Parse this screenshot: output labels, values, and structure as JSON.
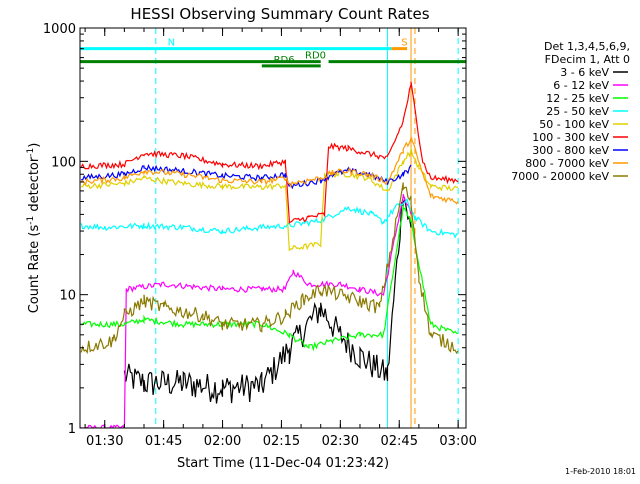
{
  "chart_data": {
    "type": "line",
    "title": "HESSI Observing Summary Count Rates",
    "xlabel": "Start Time (11-Dec-04 01:23:42)",
    "ylabel_main": "Count Rate (s",
    "ylabel_sup1": "-1",
    "ylabel_mid": " detector",
    "ylabel_sup2": "-1",
    "ylabel_end": ")",
    "footer": "1-Feb-2010 18:01",
    "x_scale": "time",
    "y_scale": "log",
    "xlim": [
      "01:23:42",
      "03:02:00"
    ],
    "ylim": [
      1,
      1000
    ],
    "x_ticks": [
      {
        "t": "01:30",
        "label": "01:30"
      },
      {
        "t": "01:45",
        "label": "01:45"
      },
      {
        "t": "02:00",
        "label": "02:00"
      },
      {
        "t": "02:15",
        "label": "02:15"
      },
      {
        "t": "02:30",
        "label": "02:30"
      },
      {
        "t": "02:45",
        "label": "02:45"
      },
      {
        "t": "03:00",
        "label": "03:00"
      }
    ],
    "y_ticks": [
      {
        "v": 1,
        "label": "1"
      },
      {
        "v": 10,
        "label": "10"
      },
      {
        "v": 100,
        "label": "100"
      },
      {
        "v": 1000,
        "label": "1000"
      }
    ],
    "legend_header": [
      "Det 1,3,4,5,6,9,",
      "FDecim 1, Att 0"
    ],
    "legend_position": "right",
    "series": [
      {
        "name": "3 - 6 keV",
        "color": "#000000",
        "points": [
          [
            "01:35",
            2.5
          ],
          [
            "01:40",
            2.2
          ],
          [
            "01:50",
            2.2
          ],
          [
            "02:00",
            2.0
          ],
          [
            "02:10",
            2.1
          ],
          [
            "02:17",
            4
          ],
          [
            "02:25",
            8
          ],
          [
            "02:30",
            5
          ],
          [
            "02:35",
            3.5
          ],
          [
            "02:42",
            2.5
          ],
          [
            "02:46",
            60
          ],
          [
            "02:48",
            30
          ]
        ]
      },
      {
        "name": "6 - 12 keV",
        "color": "#ff00ff",
        "points": [
          [
            "01:23:42",
            1.0
          ],
          [
            "01:35",
            1.0
          ],
          [
            "01:35:30",
            11
          ],
          [
            "01:45",
            12
          ],
          [
            "02:00",
            11
          ],
          [
            "02:10",
            11
          ],
          [
            "02:16",
            11
          ],
          [
            "02:18",
            15
          ],
          [
            "02:22",
            12
          ],
          [
            "02:30",
            12
          ],
          [
            "02:35",
            11
          ],
          [
            "02:41",
            10
          ],
          [
            "02:46",
            55
          ],
          [
            "02:48",
            40
          ]
        ]
      },
      {
        "name": "12 - 25 keV",
        "color": "#00ff00",
        "points": [
          [
            "01:24",
            6
          ],
          [
            "01:35",
            6
          ],
          [
            "01:40",
            6.5
          ],
          [
            "01:50",
            6
          ],
          [
            "02:00",
            6
          ],
          [
            "02:10",
            6
          ],
          [
            "02:17",
            5
          ],
          [
            "02:22",
            4
          ],
          [
            "02:28",
            4.5
          ],
          [
            "02:35",
            5
          ],
          [
            "02:41",
            5
          ],
          [
            "02:46",
            45
          ],
          [
            "02:48",
            35
          ],
          [
            "02:53",
            6
          ],
          [
            "03:00",
            5
          ]
        ]
      },
      {
        "name": "25 - 50 keV",
        "color": "#00ffff",
        "points": [
          [
            "01:24",
            33
          ],
          [
            "01:30",
            32
          ],
          [
            "01:40",
            33
          ],
          [
            "01:50",
            32
          ],
          [
            "02:00",
            30
          ],
          [
            "02:10",
            32
          ],
          [
            "02:17",
            33
          ],
          [
            "02:25",
            36
          ],
          [
            "02:32",
            45
          ],
          [
            "02:38",
            40
          ],
          [
            "02:41",
            35
          ],
          [
            "02:44",
            45
          ],
          [
            "02:47",
            50
          ],
          [
            "02:49",
            38
          ],
          [
            "02:53",
            30
          ],
          [
            "03:00",
            28
          ]
        ]
      },
      {
        "name": "50 - 100 keV",
        "color": "#e0d000",
        "points": [
          [
            "01:24",
            65
          ],
          [
            "01:35",
            68
          ],
          [
            "01:40",
            75
          ],
          [
            "01:50",
            68
          ],
          [
            "02:00",
            65
          ],
          [
            "02:10",
            64
          ],
          [
            "02:16",
            66
          ],
          [
            "02:17",
            22
          ],
          [
            "02:25",
            24
          ],
          [
            "02:26",
            80
          ],
          [
            "02:32",
            80
          ],
          [
            "02:37",
            75
          ],
          [
            "02:42",
            60
          ],
          [
            "02:46",
            100
          ],
          [
            "02:48",
            120
          ],
          [
            "02:50",
            90
          ],
          [
            "02:53",
            65
          ],
          [
            "03:00",
            62
          ]
        ]
      },
      {
        "name": "100 - 300 keV",
        "color": "#ff0000",
        "points": [
          [
            "01:24",
            92
          ],
          [
            "01:35",
            95
          ],
          [
            "01:40",
            115
          ],
          [
            "01:50",
            110
          ],
          [
            "02:00",
            95
          ],
          [
            "02:10",
            92
          ],
          [
            "02:16",
            100
          ],
          [
            "02:17",
            35
          ],
          [
            "02:22",
            38
          ],
          [
            "02:26",
            40
          ],
          [
            "02:27",
            130
          ],
          [
            "02:32",
            125
          ],
          [
            "02:37",
            115
          ],
          [
            "02:42",
            105
          ],
          [
            "02:46",
            200
          ],
          [
            "02:48",
            380
          ],
          [
            "02:51",
            100
          ],
          [
            "02:53",
            75
          ],
          [
            "03:00",
            72
          ]
        ]
      },
      {
        "name": "300 - 800 keV",
        "color": "#0000ff",
        "points": [
          [
            "01:24",
            75
          ],
          [
            "01:35",
            80
          ],
          [
            "01:40",
            90
          ],
          [
            "01:50",
            85
          ],
          [
            "02:00",
            78
          ],
          [
            "02:10",
            75
          ],
          [
            "02:16",
            80
          ],
          [
            "02:17",
            65
          ],
          [
            "02:25",
            72
          ],
          [
            "02:28",
            80
          ],
          [
            "02:32",
            85
          ],
          [
            "02:37",
            80
          ],
          [
            "02:42",
            70
          ],
          [
            "02:46",
            80
          ],
          [
            "02:48",
            90
          ]
        ]
      },
      {
        "name": "800 - 7000 keV",
        "color": "#ff9900",
        "points": [
          [
            "01:24",
            70
          ],
          [
            "01:35",
            75
          ],
          [
            "01:40",
            85
          ],
          [
            "01:50",
            80
          ],
          [
            "02:00",
            72
          ],
          [
            "02:10",
            70
          ],
          [
            "02:16",
            75
          ],
          [
            "02:17",
            68
          ],
          [
            "02:25",
            75
          ],
          [
            "02:28",
            82
          ],
          [
            "02:32",
            85
          ],
          [
            "02:37",
            80
          ],
          [
            "02:42",
            70
          ],
          [
            "02:46",
            120
          ],
          [
            "02:48",
            150
          ],
          [
            "02:51",
            80
          ],
          [
            "02:53",
            55
          ],
          [
            "03:00",
            50
          ]
        ]
      },
      {
        "name": "7000 - 20000 keV",
        "color": "#8b7a00",
        "points": [
          [
            "01:24",
            4
          ],
          [
            "01:32",
            4.5
          ],
          [
            "01:35",
            7
          ],
          [
            "01:40",
            9
          ],
          [
            "01:45",
            8
          ],
          [
            "01:55",
            7
          ],
          [
            "02:00",
            6
          ],
          [
            "02:10",
            6
          ],
          [
            "02:16",
            7
          ],
          [
            "02:20",
            9
          ],
          [
            "02:25",
            11
          ],
          [
            "02:30",
            10
          ],
          [
            "02:35",
            9
          ],
          [
            "02:40",
            8
          ],
          [
            "02:46",
            65
          ],
          [
            "02:48",
            50
          ],
          [
            "02:50",
            14
          ],
          [
            "02:53",
            5
          ],
          [
            "03:00",
            4
          ]
        ]
      }
    ],
    "overlays": [
      {
        "label": "N",
        "color": "#00ffff",
        "y_level": 700,
        "ranges": [
          [
            "01:23:42",
            "01:43"
          ],
          [
            "01:43",
            "02:43"
          ]
        ],
        "label_at": "01:46",
        "gaps": true
      },
      {
        "label": "RD0",
        "color": "#008000",
        "y_level": 560,
        "ranges": [
          [
            "01:23:42",
            "02:25"
          ],
          [
            "02:27",
            "03:02:00"
          ]
        ],
        "label_at": "02:21"
      },
      {
        "label": "RD6",
        "color": "#008000",
        "y_level": 520,
        "ranges": [
          [
            "02:10",
            "02:25"
          ]
        ],
        "label_at": "02:13"
      },
      {
        "label": "S",
        "color": "#ff9900",
        "y_level": 700,
        "ranges": [
          [
            "02:43",
            "02:47"
          ]
        ],
        "label_at": "02:45:30"
      }
    ],
    "vlines": [
      {
        "t": "01:43",
        "color": "#00ffff",
        "style": "dash"
      },
      {
        "t": "02:42",
        "color": "#00ffff",
        "style": "solid"
      },
      {
        "t": "02:48",
        "color": "#ff9900",
        "style": "solid"
      },
      {
        "t": "02:49",
        "color": "#ff9900",
        "style": "dash"
      },
      {
        "t": "03:00",
        "color": "#00ffff",
        "style": "dash"
      }
    ]
  }
}
